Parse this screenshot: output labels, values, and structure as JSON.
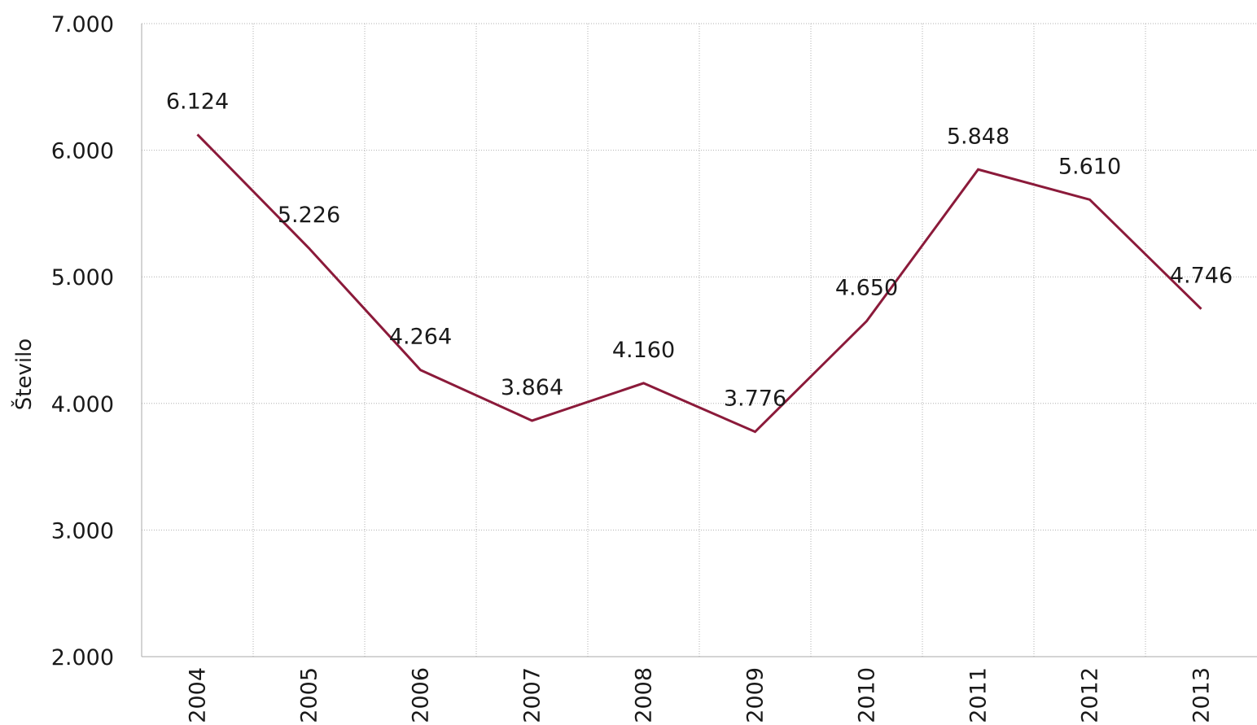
{
  "chart_data": {
    "type": "line",
    "title": "",
    "xlabel": "",
    "ylabel": "Število",
    "categories": [
      "2004",
      "2005",
      "2006",
      "2007",
      "2008",
      "2009",
      "2010",
      "2011",
      "2012",
      "2013"
    ],
    "series": [
      {
        "values": [
          6124,
          5226,
          4264,
          3864,
          4160,
          3776,
          4650,
          5848,
          5610,
          4746
        ],
        "value_labels": [
          "6.124",
          "5.226",
          "4.264",
          "3.864",
          "4.160",
          "3.776",
          "4.650",
          "5.848",
          "5.610",
          "4.746"
        ],
        "color": "#8b1a3a"
      }
    ],
    "ylim": [
      2000,
      7000
    ],
    "yticks": [
      2000,
      3000,
      4000,
      5000,
      6000,
      7000
    ],
    "ytick_labels": [
      "2.000",
      "3.000",
      "4.000",
      "5.000",
      "6.000",
      "7.000"
    ],
    "grid": true,
    "legend": "none"
  }
}
